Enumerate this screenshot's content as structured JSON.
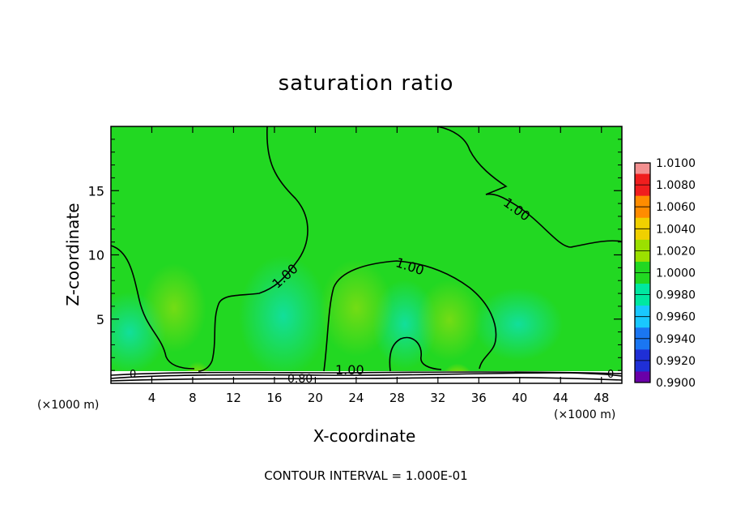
{
  "chart_data": {
    "type": "heatmap",
    "title": "saturation ratio",
    "xlabel": "X-coordinate",
    "ylabel": "Z-coordinate",
    "x_unit": "(×1000 m)",
    "y_unit": "(×1000 m)",
    "x_ticks": [
      4,
      8,
      12,
      16,
      20,
      24,
      28,
      32,
      36,
      40,
      44,
      48
    ],
    "y_ticks": [
      5,
      10,
      15
    ],
    "xlim": [
      0,
      50
    ],
    "ylim": [
      0,
      20
    ],
    "colorbar": {
      "levels": [
        "0.9900",
        "0.9920",
        "0.9940",
        "0.9960",
        "0.9980",
        "1.0000",
        "1.0020",
        "1.0040",
        "1.0060",
        "1.0080",
        "1.0100"
      ],
      "colors": [
        "#6a00a8",
        "#1f2fd6",
        "#1a76f2",
        "#19c8ff",
        "#00e8a0",
        "#22d822",
        "#9be000",
        "#f0d000",
        "#ff8c00",
        "#f01e1e",
        "#f39090"
      ]
    },
    "contour_labels": [
      "1.00",
      "1.00",
      "1.00",
      "1.00",
      "0.80",
      "0",
      "0"
    ],
    "contour_interval_note": "CONTOUR INTERVAL = 1.000E-01"
  }
}
